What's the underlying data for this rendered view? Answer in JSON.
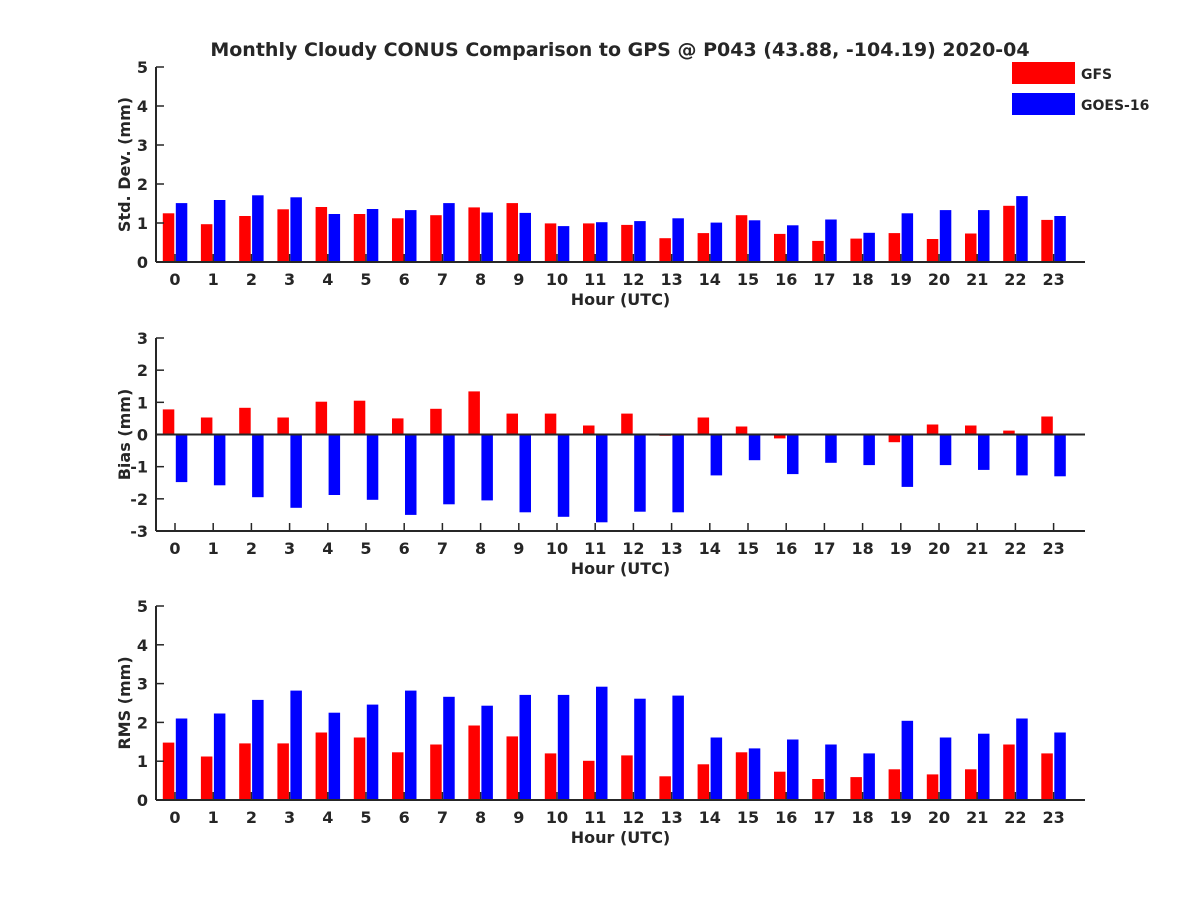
{
  "title": "Monthly Cloudy CONUS Comparison to GPS @ P043 (43.88, -104.19) 2020-04",
  "legend": [
    {
      "name": "GFS",
      "color": "#ff0000"
    },
    {
      "name": "GOES-16",
      "color": "#0000ff"
    }
  ],
  "chart_data": [
    {
      "type": "bar",
      "xlabel": "Hour (UTC)",
      "ylabel": "Std. Dev. (mm)",
      "ylim": [
        0,
        5
      ],
      "yticks": [
        0,
        1,
        2,
        3,
        4,
        5
      ],
      "categories": [
        "0",
        "1",
        "2",
        "3",
        "4",
        "5",
        "6",
        "7",
        "8",
        "9",
        "10",
        "11",
        "12",
        "13",
        "14",
        "15",
        "16",
        "17",
        "18",
        "19",
        "20",
        "21",
        "22",
        "23"
      ],
      "series": [
        {
          "name": "GFS",
          "color": "#ff0000",
          "values": [
            1.25,
            0.97,
            1.18,
            1.35,
            1.41,
            1.23,
            1.12,
            1.2,
            1.4,
            1.51,
            0.99,
            0.99,
            0.95,
            0.61,
            0.74,
            1.2,
            0.72,
            0.54,
            0.6,
            0.74,
            0.59,
            0.73,
            1.44,
            1.08
          ]
        },
        {
          "name": "GOES-16",
          "color": "#0000ff",
          "values": [
            1.51,
            1.59,
            1.71,
            1.66,
            1.23,
            1.36,
            1.33,
            1.51,
            1.27,
            1.26,
            0.92,
            1.02,
            1.05,
            1.12,
            1.01,
            1.07,
            0.94,
            1.09,
            0.75,
            1.25,
            1.33,
            1.33,
            1.69,
            1.18
          ]
        }
      ]
    },
    {
      "type": "bar",
      "xlabel": "Hour (UTC)",
      "ylabel": "Bias (mm)",
      "ylim": [
        -3,
        3
      ],
      "yticks": [
        -3,
        -2,
        -1,
        0,
        1,
        2,
        3
      ],
      "categories": [
        "0",
        "1",
        "2",
        "3",
        "4",
        "5",
        "6",
        "7",
        "8",
        "9",
        "10",
        "11",
        "12",
        "13",
        "14",
        "15",
        "16",
        "17",
        "18",
        "19",
        "20",
        "21",
        "22",
        "23"
      ],
      "series": [
        {
          "name": "GFS",
          "color": "#ff0000",
          "values": [
            0.78,
            0.53,
            0.83,
            0.53,
            1.02,
            1.05,
            0.5,
            0.8,
            1.34,
            0.65,
            0.65,
            0.28,
            0.65,
            -0.04,
            0.53,
            0.25,
            -0.12,
            0.0,
            0.0,
            -0.24,
            0.31,
            0.28,
            0.12,
            0.56
          ]
        },
        {
          "name": "GOES-16",
          "color": "#0000ff",
          "values": [
            -1.48,
            -1.58,
            -1.95,
            -2.28,
            -1.88,
            -2.03,
            -2.5,
            -2.17,
            -2.05,
            -2.42,
            -2.56,
            -2.73,
            -2.4,
            -2.42,
            -1.27,
            -0.8,
            -1.23,
            -0.88,
            -0.95,
            -1.63,
            -0.95,
            -1.1,
            -1.27,
            -1.3
          ]
        }
      ]
    },
    {
      "type": "bar",
      "xlabel": "Hour (UTC)",
      "ylabel": "RMS (mm)",
      "ylim": [
        0,
        5
      ],
      "yticks": [
        0,
        1,
        2,
        3,
        4,
        5
      ],
      "categories": [
        "0",
        "1",
        "2",
        "3",
        "4",
        "5",
        "6",
        "7",
        "8",
        "9",
        "10",
        "11",
        "12",
        "13",
        "14",
        "15",
        "16",
        "17",
        "18",
        "19",
        "20",
        "21",
        "22",
        "23"
      ],
      "series": [
        {
          "name": "GFS",
          "color": "#ff0000",
          "values": [
            1.48,
            1.12,
            1.46,
            1.46,
            1.74,
            1.61,
            1.23,
            1.43,
            1.92,
            1.64,
            1.2,
            1.01,
            1.15,
            0.61,
            0.92,
            1.23,
            0.73,
            0.54,
            0.59,
            0.79,
            0.66,
            0.79,
            1.43,
            1.2
          ]
        },
        {
          "name": "GOES-16",
          "color": "#0000ff",
          "values": [
            2.1,
            2.23,
            2.58,
            2.82,
            2.25,
            2.46,
            2.82,
            2.66,
            2.43,
            2.71,
            2.71,
            2.92,
            2.61,
            2.69,
            1.61,
            1.33,
            1.56,
            1.43,
            1.2,
            2.04,
            1.61,
            1.71,
            2.1,
            1.74
          ]
        }
      ]
    }
  ]
}
